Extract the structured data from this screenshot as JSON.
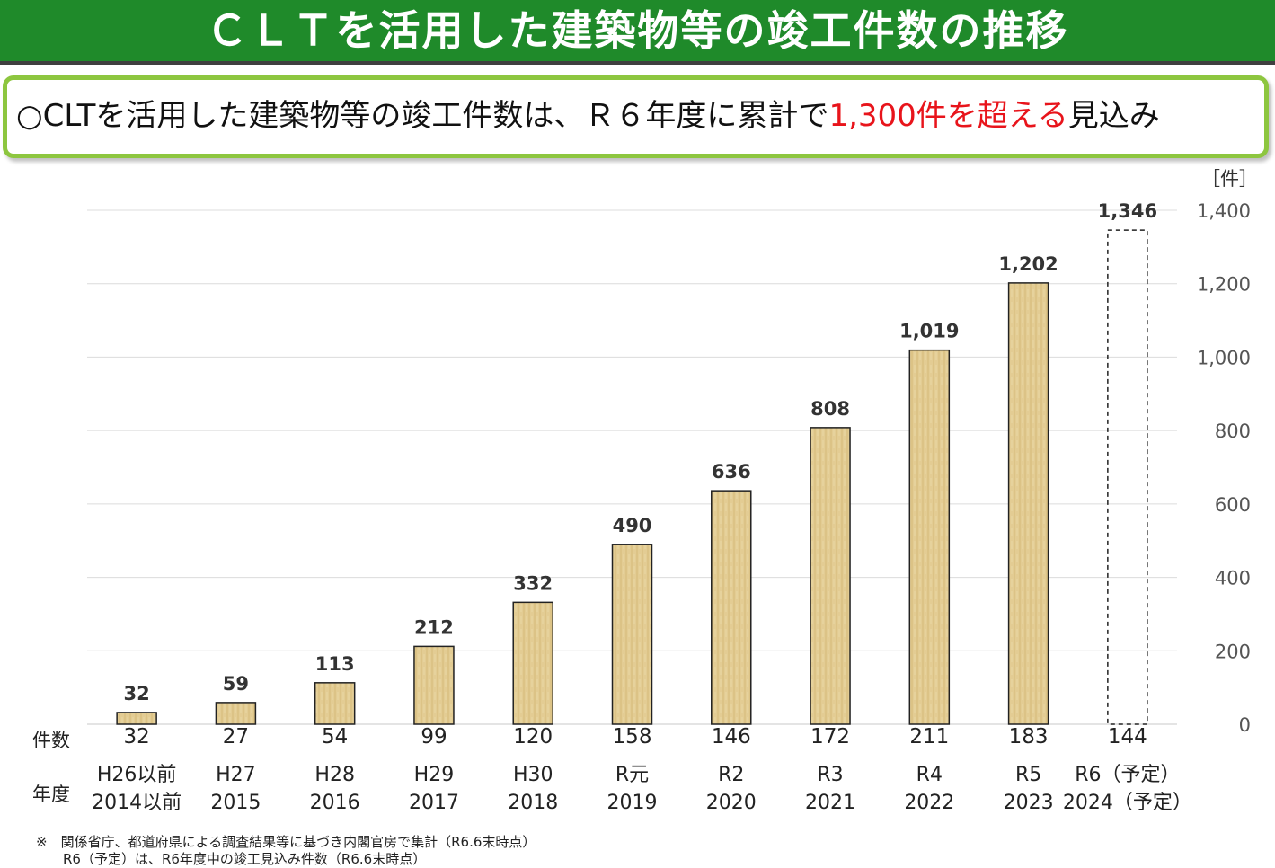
{
  "title": "ＣＬＴを活用した建築物等の竣工件数の推移",
  "summary": {
    "prefix": "○CLTを活用した建築物等の竣工件数は、Ｒ６年度に累計で",
    "highlight": "1,300件を超える",
    "suffix": "見込み"
  },
  "unit_label": "［件］",
  "row_labels": {
    "count": "件数",
    "year": "年度"
  },
  "colors": {
    "title_bg": "#1f8a2a",
    "box_border": "#8dc63f",
    "bar_fill": "#e3cc93",
    "highlight": "#e8141b"
  },
  "chart_data": {
    "type": "bar",
    "categories": [
      "H26以前",
      "H27",
      "H28",
      "H29",
      "H30",
      "R元",
      "R2",
      "R3",
      "R4",
      "R5",
      "R6（予定）"
    ],
    "categories_western": [
      "2014以前",
      "2015",
      "2016",
      "2017",
      "2018",
      "2019",
      "2020",
      "2021",
      "2022",
      "2023",
      "2024（予定）"
    ],
    "annual_counts": [
      32,
      27,
      54,
      99,
      120,
      158,
      146,
      172,
      211,
      183,
      144
    ],
    "values": [
      32,
      59,
      113,
      212,
      332,
      490,
      636,
      808,
      1019,
      1202,
      1346
    ],
    "value_labels": [
      "32",
      "59",
      "113",
      "212",
      "332",
      "490",
      "636",
      "808",
      "1,019",
      "1,202",
      "1,346"
    ],
    "planned_last": true,
    "ylim": [
      0,
      1400
    ],
    "yticks": [
      0,
      200,
      400,
      600,
      800,
      1000,
      1200,
      1400
    ],
    "ytick_labels": [
      "0",
      "200",
      "400",
      "600",
      "800",
      "1,000",
      "1,200",
      "1,400"
    ],
    "y_axis_side": "right",
    "grid": true
  },
  "footnotes": [
    "※　関係省庁、都道府県による調査結果等に基づき内閣官房で集計（R6.6末時点）",
    "　　R6（予定）は、R6年度中の竣工見込み件数（R6.6末時点）"
  ]
}
